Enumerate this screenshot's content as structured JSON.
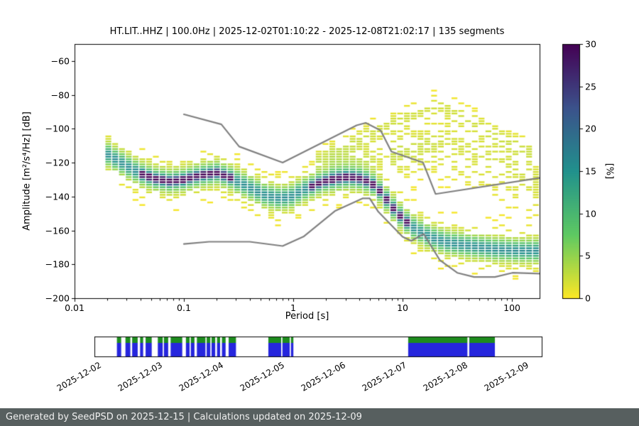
{
  "chart_data": {
    "type": "heatmap",
    "title": "HT.LIT..HHZ | 100.0Hz | 2025-12-02T01:10:22 - 2025-12-08T21:02:17 | 135 segments",
    "xlabel": "Period [s]",
    "ylabel": "Amplitude [m²/s⁴/Hz] [dB]",
    "xscale": "log",
    "xlim": [
      0.01,
      179
    ],
    "ylim": [
      -200,
      -50
    ],
    "xticks": [
      {
        "v": 0.01,
        "label": "0.01"
      },
      {
        "v": 0.1,
        "label": "0.1"
      },
      {
        "v": 1,
        "label": "1"
      },
      {
        "v": 10,
        "label": "10"
      },
      {
        "v": 100,
        "label": "100"
      }
    ],
    "yticks": [
      {
        "v": -60,
        "label": "−60"
      },
      {
        "v": -80,
        "label": "−80"
      },
      {
        "v": -100,
        "label": "−100"
      },
      {
        "v": -120,
        "label": "−120"
      },
      {
        "v": -140,
        "label": "−140"
      },
      {
        "v": -160,
        "label": "−160"
      },
      {
        "v": -180,
        "label": "−180"
      },
      {
        "v": -200,
        "label": "−200"
      }
    ],
    "colorbar": {
      "label": "[%]",
      "min": 0,
      "max": 30,
      "ticks": [
        {
          "v": 0,
          "label": "0"
        },
        {
          "v": 5,
          "label": "5"
        },
        {
          "v": 10,
          "label": "10"
        },
        {
          "v": 15,
          "label": "15"
        },
        {
          "v": 20,
          "label": "20"
        },
        {
          "v": 25,
          "label": "25"
        },
        {
          "v": 30,
          "label": "30"
        }
      ],
      "description": "PSD probability of occurrence; reversed viridis: 0% = yellow, 30% = dark purple",
      "stops": [
        "#440154",
        "#3b528b",
        "#21918c",
        "#5ec962",
        "#fde725"
      ]
    },
    "noise_models": {
      "color": "#808080",
      "high": [
        [
          0.1,
          -91.5
        ],
        [
          0.22,
          -97.4
        ],
        [
          0.32,
          -110.5
        ],
        [
          0.8,
          -120
        ],
        [
          3.8,
          -98
        ],
        [
          4.6,
          -96.5
        ],
        [
          6.3,
          -101
        ],
        [
          7.9,
          -113.5
        ],
        [
          15.4,
          -120
        ],
        [
          20,
          -138.5
        ],
        [
          179,
          -129
        ]
      ],
      "low": [
        [
          0.1,
          -168
        ],
        [
          0.17,
          -166.7
        ],
        [
          0.4,
          -166.7
        ],
        [
          0.8,
          -169.2
        ],
        [
          1.24,
          -163.7
        ],
        [
          2.4,
          -148.6
        ],
        [
          4.3,
          -141.1
        ],
        [
          5,
          -141.1
        ],
        [
          6,
          -149
        ],
        [
          10,
          -163.8
        ],
        [
          12,
          -166.2
        ],
        [
          15.6,
          -162.1
        ],
        [
          21.9,
          -177.5
        ],
        [
          31.6,
          -185
        ],
        [
          45,
          -187.5
        ],
        [
          70,
          -187.5
        ],
        [
          101,
          -185
        ],
        [
          179,
          -185.5
        ]
      ]
    },
    "density": {
      "curves": {
        "main": [
          [
            0.02,
            -115
          ],
          [
            0.026,
            -119.5
          ],
          [
            0.033,
            -123.5
          ],
          [
            0.042,
            -127
          ],
          [
            0.055,
            -129.5
          ],
          [
            0.075,
            -131
          ],
          [
            0.1,
            -130
          ],
          [
            0.14,
            -127.5
          ],
          [
            0.2,
            -126
          ],
          [
            0.27,
            -129
          ],
          [
            0.38,
            -134
          ],
          [
            0.55,
            -139
          ],
          [
            0.75,
            -141
          ],
          [
            0.95,
            -140
          ],
          [
            1.3,
            -135.5
          ],
          [
            1.8,
            -131.5
          ],
          [
            2.4,
            -129.5
          ],
          [
            3.2,
            -128.5
          ],
          [
            4.2,
            -129.5
          ],
          [
            5.2,
            -132
          ],
          [
            6.5,
            -138
          ],
          [
            8,
            -146
          ],
          [
            10,
            -153
          ],
          [
            13,
            -159
          ],
          [
            18,
            -164
          ],
          [
            25,
            -167
          ],
          [
            40,
            -169
          ],
          [
            70,
            -171
          ],
          [
            120,
            -172
          ],
          [
            178,
            -172
          ]
        ],
        "upper_arc": [
          [
            1.5,
            -120
          ],
          [
            3,
            -110
          ],
          [
            6,
            -100
          ],
          [
            12,
            -92
          ],
          [
            22,
            -86
          ],
          [
            40,
            -94
          ],
          [
            80,
            -105
          ],
          [
            160,
            -114
          ]
        ],
        "upper_arc2": [
          [
            2,
            -126
          ],
          [
            5,
            -117
          ],
          [
            10,
            -110
          ],
          [
            25,
            -104
          ],
          [
            60,
            -114
          ],
          [
            120,
            -123
          ],
          [
            170,
            -127
          ]
        ],
        "mid_strands": [
          [
            8,
            -122
          ],
          [
            20,
            -118
          ],
          [
            50,
            -128
          ],
          [
            120,
            -138
          ],
          [
            170,
            -142
          ]
        ]
      },
      "components": [
        {
          "curve": "main",
          "sigma": 8.5,
          "peak": 3.2
        },
        {
          "curve": "main",
          "sigma": 3.4,
          "peak": 13
        },
        {
          "curve": "main",
          "sigma": 1.4,
          "peak": 26,
          "prange": [
            0.04,
            0.28
          ]
        },
        {
          "curve": "main",
          "sigma": 1.4,
          "peak": 26,
          "prange": [
            1.3,
            12
          ]
        },
        {
          "curve": "upper_arc",
          "sigma": 5,
          "peak": 2.1
        },
        {
          "curve": "upper_arc2",
          "sigma": 7,
          "peak": 1.7
        },
        {
          "curve": "mid_strands",
          "sigma": 9,
          "peak": 1.5
        }
      ]
    },
    "timeline": {
      "range_days": [
        -0.058,
        7.267
      ],
      "labels": [
        {
          "day": 0,
          "label": "2025-12-02"
        },
        {
          "day": 1,
          "label": "2025-12-03"
        },
        {
          "day": 2,
          "label": "2025-12-04"
        },
        {
          "day": 3,
          "label": "2025-12-05"
        },
        {
          "day": 4,
          "label": "2025-12-06"
        },
        {
          "day": 5,
          "label": "2025-12-07"
        },
        {
          "day": 6,
          "label": "2025-12-08"
        },
        {
          "day": 7,
          "label": "2025-12-09"
        }
      ],
      "colors": {
        "coverage": "#2626dd",
        "coverage_top": "#1e8c1e",
        "background": "#ffffff",
        "border": "#000000"
      },
      "segments": [
        [
          0.31,
          0.38
        ],
        [
          0.45,
          0.53
        ],
        [
          0.56,
          0.65
        ],
        [
          0.69,
          0.74
        ],
        [
          0.78,
          0.88
        ],
        [
          0.98,
          1.06
        ],
        [
          1.08,
          1.15
        ],
        [
          1.19,
          1.38
        ],
        [
          1.44,
          1.5
        ],
        [
          1.52,
          1.58
        ],
        [
          1.62,
          1.76
        ],
        [
          1.78,
          1.84
        ],
        [
          1.86,
          1.92
        ],
        [
          1.95,
          2.0
        ],
        [
          2.03,
          2.09
        ],
        [
          2.14,
          2.26
        ],
        [
          2.79,
          3.0
        ],
        [
          3.02,
          3.14
        ],
        [
          3.16,
          3.2
        ],
        [
          5.08,
          6.05
        ],
        [
          6.08,
          6.5
        ]
      ]
    }
  },
  "footer": {
    "text": "Generated by SeedPSD on 2025-12-15 | Calculations updated on 2025-12-09",
    "background": "#575f5f",
    "text_color": "#f0f0f0"
  }
}
